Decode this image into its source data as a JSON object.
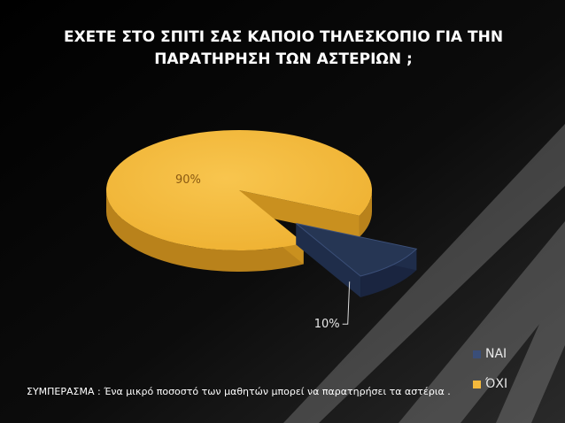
{
  "title": {
    "line1": "ΕΧΕΤΕ ΣΤΟ ΣΠΙΤΙ ΣΑΣ ΚΑΠΟΙΟ ΤΗΛΕΣΚΟΠΙΟ ΓΙΑ ΤΗΝ",
    "line2": "ΠΑΡΑΤΗΡΗΣΗ ΤΩΝ ΑΣΤΕΡΙΩΝ ;"
  },
  "conclusion": "ΣΥΜΠΕΡΑΣΜΑ : Ένα μικρό ποσοστό των μαθητών μπορεί να παρατηρήσει τα αστέρια .",
  "chart_data": {
    "type": "pie",
    "style": "3d-exploded",
    "slices": [
      {
        "label": "ΝΑΙ",
        "value": 10,
        "data_label": "10%",
        "color": "#263654"
      },
      {
        "label": "ΌΧΙ",
        "value": 90,
        "data_label": "90%",
        "color": "#f4b93c"
      }
    ],
    "legend": {
      "placement": "bottom-right"
    }
  }
}
